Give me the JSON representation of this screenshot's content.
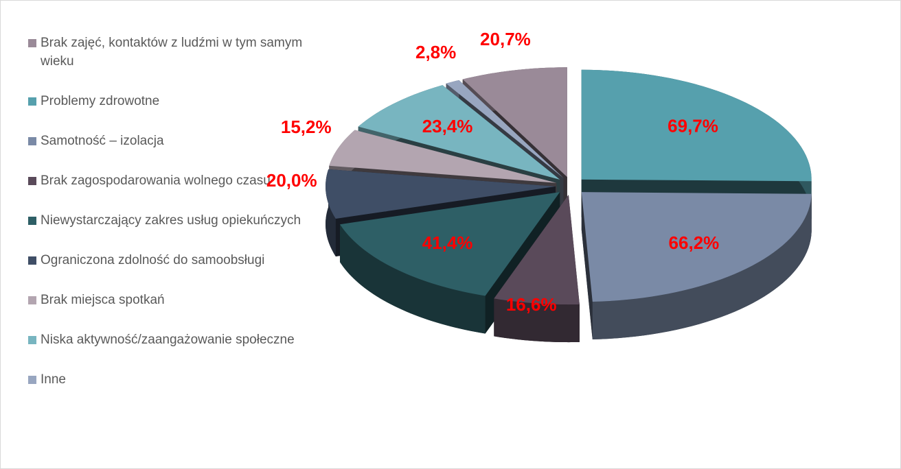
{
  "chart_data": {
    "type": "pie3d",
    "categories": [
      "Brak zajęć, kontaktów z ludźmi w tym samym wieku",
      "Problemy zdrowotne",
      "Samotność – izolacja",
      "Brak zagospodarowania wolnego czasu",
      "Niewystarczający zakres usług opiekuńczych",
      "Ograniczona zdolność do samoobsługi",
      "Brak miejsca spotkań",
      "Niska aktywność/zaangażowanie społeczne",
      "Inne"
    ],
    "values": [
      20.7,
      69.7,
      66.2,
      16.6,
      41.4,
      20.0,
      15.2,
      23.4,
      2.8
    ],
    "value_labels": [
      "20,7%",
      "69,7%",
      "66,2%",
      "16,6%",
      "41,4%",
      "20,0%",
      "15,2%",
      "23,4%",
      "2,8%"
    ],
    "colors": [
      "#9a8a98",
      "#56a0ad",
      "#7a8aa6",
      "#5a4a5a",
      "#2e5f66",
      "#3f4e66",
      "#b3a5b0",
      "#78b5c0",
      "#98a6c0"
    ],
    "label_color": "#ff0000",
    "legend": "left"
  }
}
